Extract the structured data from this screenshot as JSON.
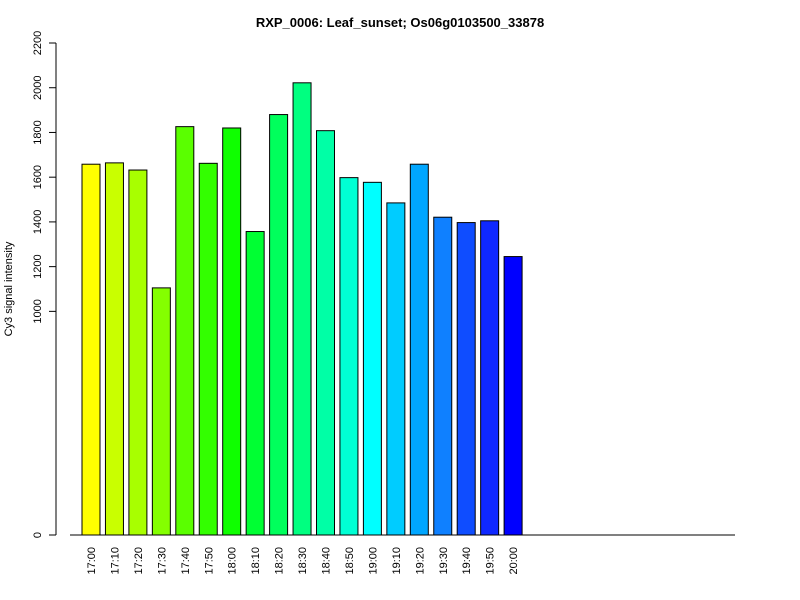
{
  "chart_data": {
    "type": "bar",
    "title": "RXP_0006: Leaf_sunset; Os06g0103500_33878",
    "xlabel": "",
    "ylabel": "Cy3 signal intensity",
    "categories": [
      "17:00",
      "17:10",
      "17:20",
      "17:30",
      "17:40",
      "17:50",
      "18:00",
      "18:10",
      "18:20",
      "18:30",
      "18:40",
      "18:50",
      "19:00",
      "19:10",
      "19:20",
      "19:30",
      "19:40",
      "19:50",
      "20:00"
    ],
    "values": [
      1658,
      1664,
      1632,
      1105,
      1826,
      1662,
      1820,
      1357,
      1880,
      2022,
      1808,
      1598,
      1577,
      1485,
      1658,
      1421,
      1397,
      1405,
      1245
    ],
    "colors": [
      "#ffff00",
      "#c9ff00",
      "#a8ff00",
      "#84ff00",
      "#5aff00",
      "#33ff00",
      "#0fff00",
      "#00ff33",
      "#00ff5c",
      "#00ff80",
      "#00ffa6",
      "#00ffd4",
      "#00ffff",
      "#00ccff",
      "#00a6ff",
      "#0f80ff",
      "#0f4dff",
      "#0f28ff",
      "#0000ff"
    ],
    "yticks": [
      0,
      1000,
      1200,
      1400,
      1600,
      1800,
      2000,
      2200
    ],
    "ylim": [
      0,
      2200
    ],
    "grid": false
  }
}
